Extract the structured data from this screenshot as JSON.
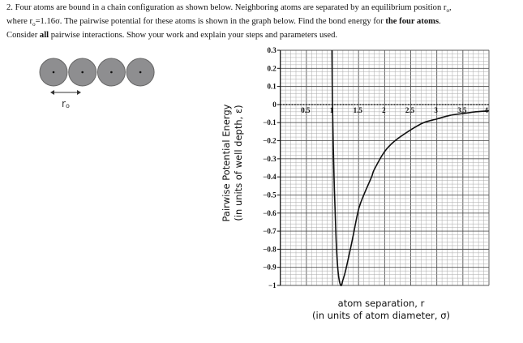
{
  "question": {
    "number": "2.",
    "line1_a": "Four atoms are bound in a chain configuration as shown below.  Neighboring atoms are separated by an equilibrium position r",
    "line1_sub": "o",
    "line1_b": ",",
    "line2_a": "where r",
    "line2_sub": "o",
    "line2_b": "=1.16σ.  The pairwise potential for these atoms is shown in the graph below.  Find the bond energy for ",
    "line2_bold": "the four atoms",
    "line2_c": ".",
    "line3_a": "Consider ",
    "line3_bold": "all",
    "line3_b": " pairwise interactions.  Show your work and explain your steps and parameters used."
  },
  "diagram": {
    "atom_count": 4,
    "atom_color": "#8e8e90",
    "spacing_label": "r",
    "spacing_label_sub": "o"
  },
  "chart_data": {
    "type": "line",
    "title": "",
    "ylabel_line1": "Pairwise  Potential Energy",
    "ylabel_line2": "(in units of well depth, ε)",
    "xlabel_line1": "atom separation, r",
    "xlabel_line2": "(in units of atom diameter, σ)",
    "xlim": [
      0,
      4
    ],
    "ylim": [
      -1,
      0.3
    ],
    "grid": true,
    "x_ticks": [
      "0.5",
      "1",
      "1.5",
      "2",
      "2.5",
      "3",
      "3.5",
      "4"
    ],
    "x_tick_values": [
      0.5,
      1,
      1.5,
      2,
      2.5,
      3,
      3.5,
      4
    ],
    "y_ticks": [
      "0.3",
      "0.2",
      "0.1",
      "0",
      "−0.1",
      "−0.2",
      "−0.3",
      "−0.4",
      "−0.5",
      "−0.6",
      "−0.7",
      "−0.8",
      "−0.9",
      "−1"
    ],
    "y_tick_values": [
      0.3,
      0.2,
      0.1,
      0,
      -0.1,
      -0.2,
      -0.3,
      -0.4,
      -0.5,
      -0.6,
      -0.7,
      -0.8,
      -0.9,
      -1
    ],
    "series": [
      {
        "x": [
          0.99,
          1.0,
          1.03,
          1.07,
          1.11,
          1.16,
          1.2,
          1.25,
          1.35,
          1.4,
          1.5,
          1.6,
          1.75,
          1.8,
          2.0,
          2.2,
          2.5,
          2.75,
          3.0,
          3.25,
          3.5,
          3.75,
          4.0
        ],
        "y": [
          0.3,
          0.0,
          -0.4,
          -0.75,
          -0.93,
          -1.0,
          -0.97,
          -0.92,
          -0.79,
          -0.72,
          -0.58,
          -0.5,
          -0.4,
          -0.36,
          -0.26,
          -0.2,
          -0.14,
          -0.1,
          -0.08,
          -0.06,
          -0.05,
          -0.04,
          -0.035
        ]
      }
    ]
  }
}
